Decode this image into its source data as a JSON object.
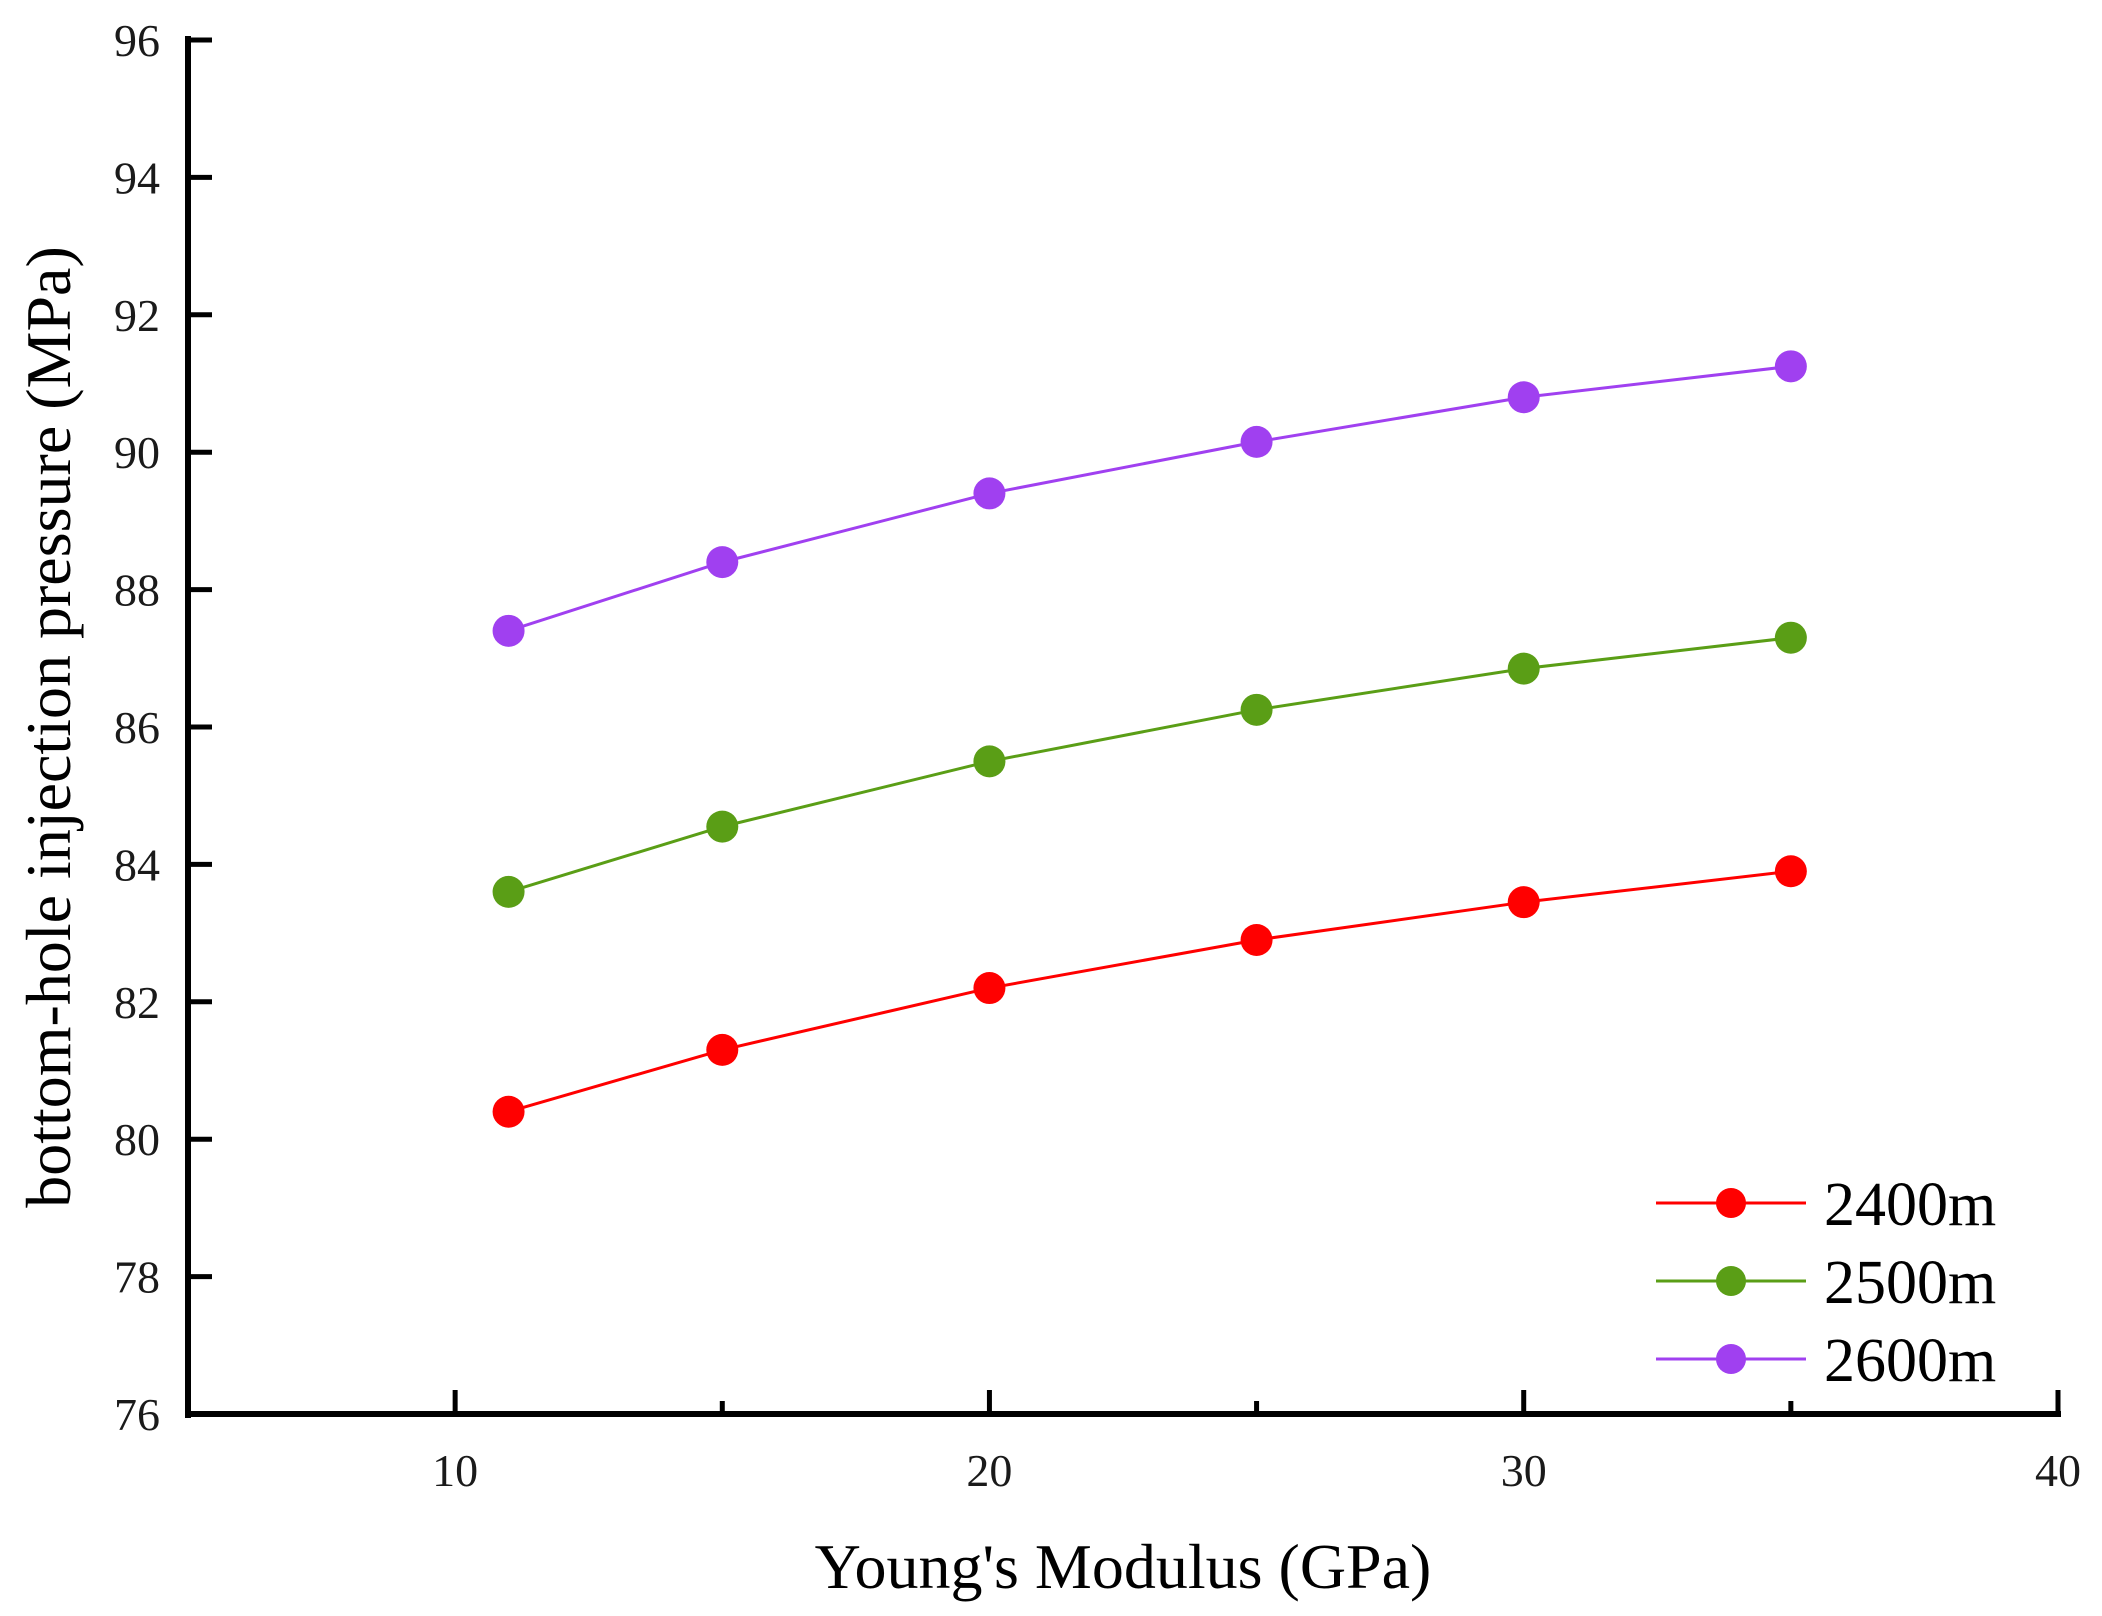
{
  "chart_data": {
    "type": "line",
    "title": "",
    "xlabel": "Young's Modulus (GPa)",
    "ylabel": "bottom-hole injection pressure (MPa)",
    "xlim": [
      5,
      40
    ],
    "ylim": [
      76,
      96
    ],
    "xticks": [
      10,
      20,
      30,
      40
    ],
    "xminor_ticks": [
      15,
      25,
      35
    ],
    "yticks": [
      76,
      78,
      80,
      82,
      84,
      86,
      88,
      90,
      92,
      94,
      96
    ],
    "grid": false,
    "legend_position": "bottom-right",
    "x": [
      11,
      15,
      20,
      25,
      30,
      35
    ],
    "series": [
      {
        "name": "2400m",
        "color": "#ff0000",
        "values": [
          80.4,
          81.3,
          82.2,
          82.9,
          83.45,
          83.9
        ]
      },
      {
        "name": "2500m",
        "color": "#5a9e16",
        "values": [
          83.6,
          84.55,
          85.5,
          86.25,
          86.85,
          87.3
        ]
      },
      {
        "name": "2600m",
        "color": "#a040f0",
        "values": [
          87.4,
          88.4,
          89.4,
          90.15,
          90.8,
          91.25
        ]
      }
    ]
  }
}
